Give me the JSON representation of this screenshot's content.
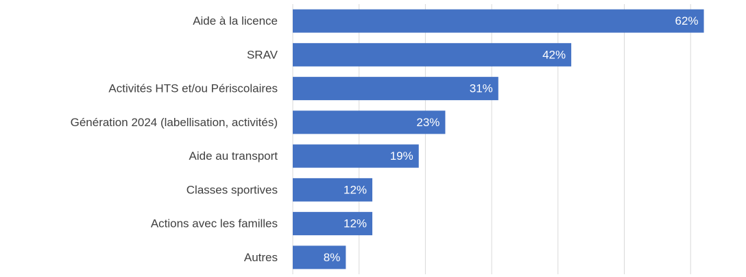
{
  "chart_data": {
    "type": "bar",
    "orientation": "horizontal",
    "categories": [
      "Aide à la licence",
      "SRAV",
      "Activités HTS et/ou Périscolaires",
      "Génération 2024 (labellisation, activités)",
      "Aide au transport",
      "Classes sportives",
      "Actions avec les familles",
      "Autres"
    ],
    "values": [
      62,
      42,
      31,
      23,
      19,
      12,
      12,
      8
    ],
    "value_labels": [
      "62%",
      "42%",
      "31%",
      "23%",
      "19%",
      "12%",
      "12%",
      "8%"
    ],
    "color": "#4472c4",
    "xlim": [
      0,
      65
    ],
    "xticks": [
      0,
      10,
      20,
      30,
      40,
      50,
      60
    ],
    "grid": true
  }
}
